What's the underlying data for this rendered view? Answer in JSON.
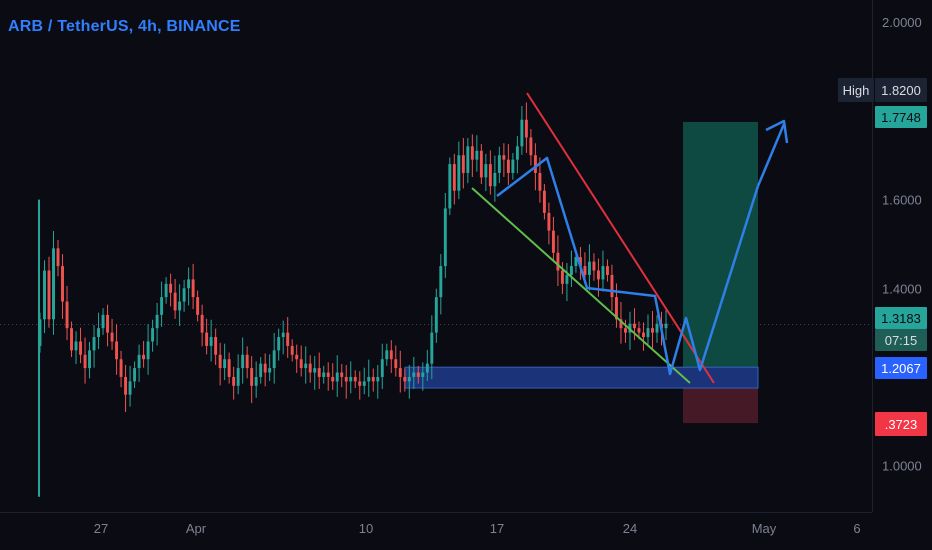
{
  "header": {
    "title": "ARB / TetherUS, 4h, BINANCE"
  },
  "colors": {
    "background": "#0b0b14",
    "up": "#26a69a",
    "down": "#ef5350",
    "blue_zone": "#1e3a8a",
    "target_zone": "#0f4d44",
    "stop_zone": "#4a1a27",
    "red_trendline": "#e0303d",
    "green_trendline": "#5fbf4a",
    "projection": "#2f7fe8"
  },
  "chart_data": {
    "type": "candlestick",
    "y_axis": {
      "min": 0.9,
      "max": 2.05,
      "tick_labels": [
        "2.0000",
        "1.6000",
        "1.4000",
        "1.0000"
      ],
      "tick_values": [
        2.0,
        1.6,
        1.4,
        1.0
      ]
    },
    "x_axis": {
      "tick_labels": [
        "27",
        "Apr",
        "10",
        "17",
        "24",
        "May",
        "6"
      ]
    },
    "price_labels": {
      "high_label": "High",
      "high_value": "1.8200",
      "target": "1.7748",
      "current": "1.3183",
      "countdown": "07:15",
      "entry": "1.2067",
      "stop": ".3723"
    },
    "series_closes": [
      1.33,
      1.44,
      1.33,
      1.49,
      1.45,
      1.37,
      1.31,
      1.26,
      1.28,
      1.25,
      1.22,
      1.26,
      1.29,
      1.31,
      1.34,
      1.3,
      1.28,
      1.24,
      1.2,
      1.16,
      1.19,
      1.22,
      1.25,
      1.24,
      1.28,
      1.31,
      1.34,
      1.38,
      1.41,
      1.39,
      1.35,
      1.37,
      1.4,
      1.42,
      1.38,
      1.34,
      1.3,
      1.27,
      1.29,
      1.25,
      1.22,
      1.24,
      1.2,
      1.18,
      1.22,
      1.25,
      1.22,
      1.18,
      1.2,
      1.23,
      1.21,
      1.22,
      1.26,
      1.29,
      1.3,
      1.27,
      1.25,
      1.24,
      1.22,
      1.23,
      1.21,
      1.22,
      1.2,
      1.21,
      1.2,
      1.19,
      1.21,
      1.2,
      1.19,
      1.2,
      1.19,
      1.18,
      1.19,
      1.2,
      1.19,
      1.2,
      1.24,
      1.26,
      1.24,
      1.22,
      1.2,
      1.19,
      1.2,
      1.21,
      1.2,
      1.21,
      1.23,
      1.3,
      1.38,
      1.45,
      1.58,
      1.68,
      1.62,
      1.7,
      1.66,
      1.72,
      1.69,
      1.71,
      1.65,
      1.68,
      1.63,
      1.66,
      1.7,
      1.69,
      1.66,
      1.69,
      1.72,
      1.78,
      1.74,
      1.7,
      1.66,
      1.62,
      1.57,
      1.53,
      1.48,
      1.44,
      1.41,
      1.43,
      1.45,
      1.47,
      1.45,
      1.43,
      1.46,
      1.44,
      1.42,
      1.45,
      1.43,
      1.38,
      1.33,
      1.31,
      1.3,
      1.32,
      1.31,
      1.3,
      1.29,
      1.31,
      1.3,
      1.32,
      1.31,
      1.32
    ],
    "zones": {
      "blue_support": [
        1.175,
        1.222
      ],
      "target_box": [
        1.222,
        1.775
      ],
      "stop_box": [
        1.096,
        1.175
      ]
    }
  }
}
